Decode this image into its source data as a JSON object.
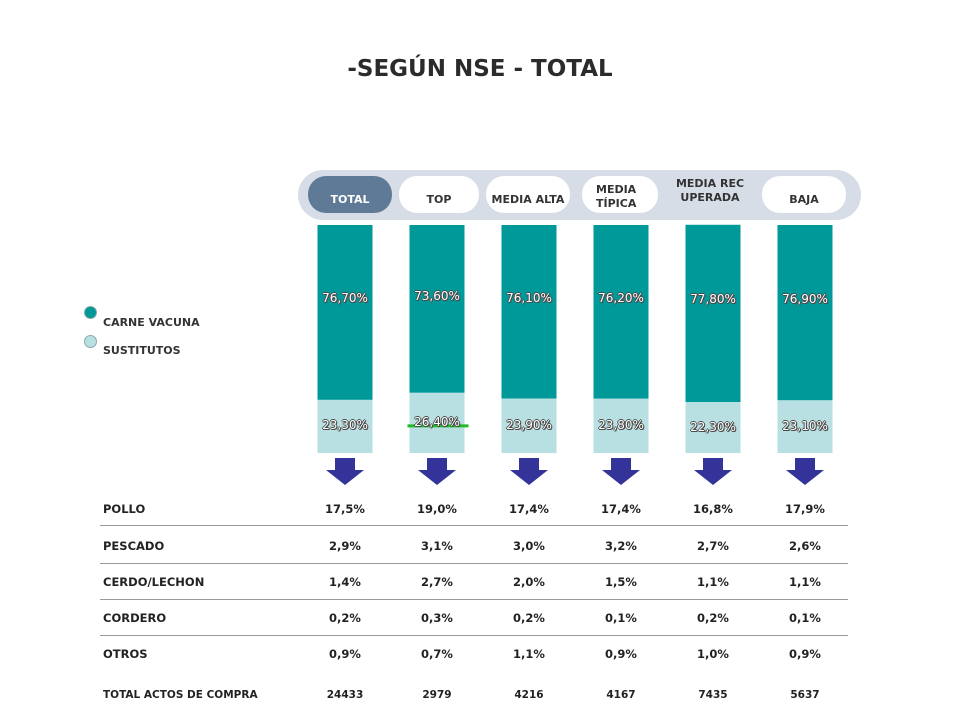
{
  "title": "-SEGÚN NSE - TOTAL",
  "tabs": [
    {
      "label": "TOTAL",
      "active": true
    },
    {
      "label": "TOP",
      "active": false
    },
    {
      "label": "MEDIA ALTA",
      "active": false
    },
    {
      "label": "MEDIA TÍPICA",
      "active": false
    },
    {
      "label": "MEDIA RECUPERADA",
      "active": false
    },
    {
      "label": "BAJA",
      "active": false
    }
  ],
  "legend": [
    {
      "label": "CARNE VACUNA",
      "color": "#009999"
    },
    {
      "label": "SUSTITUTOS",
      "color": "#b8e0e2"
    }
  ],
  "chart_data": {
    "type": "bar",
    "stacked": true,
    "categories": [
      "TOTAL",
      "TOP",
      "MEDIA ALTA",
      "MEDIA TÍPICA",
      "MEDIA RECUPERADA",
      "BAJA"
    ],
    "series": [
      {
        "name": "CARNE VACUNA",
        "color": "#009999",
        "values": [
          76.7,
          73.6,
          76.1,
          76.2,
          77.8,
          76.9
        ],
        "labels": [
          "76,70%",
          "73,60%",
          "76,10%",
          "76,20%",
          "77,80%",
          "76,90%"
        ]
      },
      {
        "name": "SUSTITUTOS",
        "color": "#b8e0e2",
        "values": [
          23.3,
          26.4,
          23.9,
          23.8,
          22.3,
          23.1
        ],
        "labels": [
          "23,30%",
          "26,40%",
          "23,90%",
          "23,80%",
          "22,30%",
          "23,10%"
        ]
      }
    ],
    "ylim": [
      0,
      100
    ],
    "highlight_category": "TOP",
    "highlight_color": "#22bb22",
    "arrow_color": "#33339a"
  },
  "table": {
    "rows": [
      {
        "label": "POLLO",
        "values": [
          "17,5%",
          "19,0%",
          "17,4%",
          "17,4%",
          "16,8%",
          "17,9%"
        ]
      },
      {
        "label": "PESCADO",
        "values": [
          "2,9%",
          "3,1%",
          "3,0%",
          "3,2%",
          "2,7%",
          "2,6%"
        ]
      },
      {
        "label": "CERDO/LECHON",
        "values": [
          "1,4%",
          "2,7%",
          "2,0%",
          "1,5%",
          "1,1%",
          "1,1%"
        ]
      },
      {
        "label": "CORDERO",
        "values": [
          "0,2%",
          "0,3%",
          "0,2%",
          "0,1%",
          "0,2%",
          "0,1%"
        ]
      },
      {
        "label": "OTROS",
        "values": [
          "0,9%",
          "0,7%",
          "1,1%",
          "0,9%",
          "1,0%",
          "0,9%"
        ]
      }
    ],
    "total": {
      "label": "TOTAL ACTOS DE COMPRA",
      "values": [
        "24433",
        "2979",
        "4216",
        "4167",
        "7435",
        "5637"
      ]
    }
  }
}
